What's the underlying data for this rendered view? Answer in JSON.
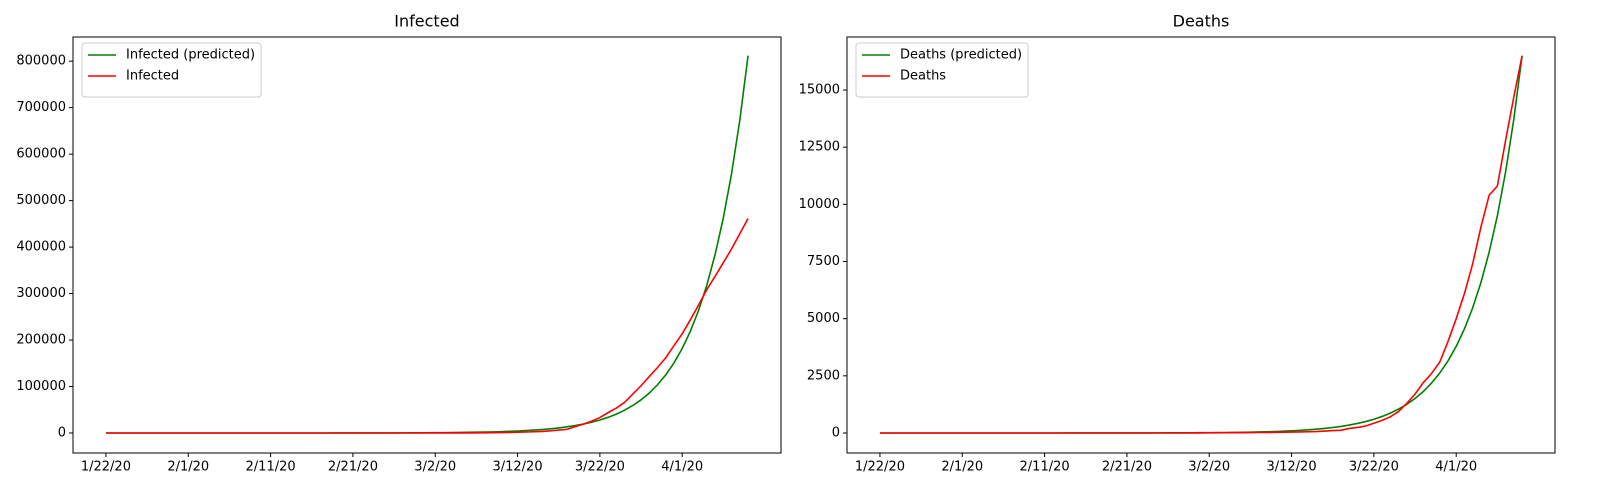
{
  "chart_data": [
    {
      "type": "line",
      "title": "Infected",
      "x": [
        "1/22/20",
        "1/23/20",
        "1/24/20",
        "1/25/20",
        "1/26/20",
        "1/27/20",
        "1/28/20",
        "1/29/20",
        "1/30/20",
        "1/31/20",
        "2/1/20",
        "2/2/20",
        "2/3/20",
        "2/4/20",
        "2/5/20",
        "2/6/20",
        "2/7/20",
        "2/8/20",
        "2/9/20",
        "2/10/20",
        "2/11/20",
        "2/12/20",
        "2/13/20",
        "2/14/20",
        "2/15/20",
        "2/16/20",
        "2/17/20",
        "2/18/20",
        "2/19/20",
        "2/20/20",
        "2/21/20",
        "2/22/20",
        "2/23/20",
        "2/24/20",
        "2/25/20",
        "2/26/20",
        "2/27/20",
        "2/28/20",
        "2/29/20",
        "3/1/20",
        "3/2/20",
        "3/3/20",
        "3/4/20",
        "3/5/20",
        "3/6/20",
        "3/7/20",
        "3/8/20",
        "3/9/20",
        "3/10/20",
        "3/11/20",
        "3/12/20",
        "3/13/20",
        "3/14/20",
        "3/15/20",
        "3/16/20",
        "3/17/20",
        "3/18/20",
        "3/19/20",
        "3/20/20",
        "3/21/20",
        "3/22/20",
        "3/23/20",
        "3/24/20",
        "3/25/20",
        "3/26/20",
        "3/27/20",
        "3/28/20",
        "3/29/20",
        "3/30/20",
        "3/31/20",
        "4/1/20",
        "4/2/20",
        "4/3/20",
        "4/4/20",
        "4/5/20",
        "4/6/20",
        "4/7/20",
        "4/8/20",
        "4/9/20"
      ],
      "series": [
        {
          "name": "Infected (predicted)",
          "color": "#008000",
          "values": [
            0,
            0,
            0,
            1,
            1,
            1,
            1,
            1,
            2,
            2,
            2,
            3,
            3,
            4,
            5,
            6,
            7,
            9,
            11,
            13,
            16,
            19,
            23,
            28,
            34,
            40,
            49,
            59,
            71,
            85,
            103,
            124,
            149,
            180,
            217,
            261,
            315,
            380,
            458,
            552,
            665,
            802,
            967,
            1166,
            1406,
            1695,
            2043,
            2463,
            2970,
            3581,
            4317,
            5205,
            6276,
            7567,
            9123,
            11000,
            13260,
            15990,
            19280,
            23240,
            28020,
            33780,
            40730,
            49110,
            59210,
            71390,
            86070,
            103800,
            125100,
            150800,
            181900,
            219300,
            264400,
            318700,
            384300,
            463300,
            558600,
            673500,
            812000
          ]
        },
        {
          "name": "Infected",
          "color": "#ff0000",
          "values": [
            1,
            1,
            2,
            2,
            5,
            5,
            5,
            5,
            5,
            7,
            8,
            8,
            11,
            11,
            11,
            11,
            11,
            11,
            11,
            11,
            12,
            12,
            13,
            13,
            13,
            13,
            13,
            13,
            13,
            13,
            15,
            15,
            15,
            51,
            51,
            57,
            58,
            60,
            68,
            74,
            98,
            118,
            149,
            217,
            262,
            402,
            518,
            583,
            959,
            1281,
            1663,
            2179,
            2727,
            3499,
            4632,
            6421,
            7786,
            13680,
            19101,
            25493,
            33276,
            43847,
            53740,
            65778,
            83836,
            101657,
            121465,
            140909,
            161831,
            188172,
            213372,
            243762,
            275586,
            308853,
            337072,
            366667,
            396223,
            429052,
            461437
          ]
        }
      ],
      "xlim": [
        "1/18/20",
        "4/13/20"
      ],
      "xticks": [
        "1/22/20",
        "2/1/20",
        "2/11/20",
        "2/21/20",
        "3/2/20",
        "3/12/20",
        "3/22/20",
        "4/1/20"
      ],
      "ylim": [
        -43000,
        852000
      ],
      "yticks": [
        0,
        100000,
        200000,
        300000,
        400000,
        500000,
        600000,
        700000,
        800000
      ],
      "legend": "upper left"
    },
    {
      "type": "line",
      "title": "Deaths",
      "x": [
        "1/22/20",
        "1/23/20",
        "1/24/20",
        "1/25/20",
        "1/26/20",
        "1/27/20",
        "1/28/20",
        "1/29/20",
        "1/30/20",
        "1/31/20",
        "2/1/20",
        "2/2/20",
        "2/3/20",
        "2/4/20",
        "2/5/20",
        "2/6/20",
        "2/7/20",
        "2/8/20",
        "2/9/20",
        "2/10/20",
        "2/11/20",
        "2/12/20",
        "2/13/20",
        "2/14/20",
        "2/15/20",
        "2/16/20",
        "2/17/20",
        "2/18/20",
        "2/19/20",
        "2/20/20",
        "2/21/20",
        "2/22/20",
        "2/23/20",
        "2/24/20",
        "2/25/20",
        "2/26/20",
        "2/27/20",
        "2/28/20",
        "2/29/20",
        "3/1/20",
        "3/2/20",
        "3/3/20",
        "3/4/20",
        "3/5/20",
        "3/6/20",
        "3/7/20",
        "3/8/20",
        "3/9/20",
        "3/10/20",
        "3/11/20",
        "3/12/20",
        "3/13/20",
        "3/14/20",
        "3/15/20",
        "3/16/20",
        "3/17/20",
        "3/18/20",
        "3/19/20",
        "3/20/20",
        "3/21/20",
        "3/22/20",
        "3/23/20",
        "3/24/20",
        "3/25/20",
        "3/26/20",
        "3/27/20",
        "3/28/20",
        "3/29/20",
        "3/30/20",
        "3/31/20",
        "4/1/20",
        "4/2/20",
        "4/3/20",
        "4/4/20",
        "4/5/20",
        "4/6/20",
        "4/7/20",
        "4/8/20",
        "4/9/20"
      ],
      "series": [
        {
          "name": "Deaths (predicted)",
          "color": "#008000",
          "values": [
            0,
            0,
            0,
            0,
            0,
            0,
            0,
            0,
            0,
            0,
            0,
            0,
            0,
            0,
            0,
            0,
            0,
            0,
            0,
            0,
            0,
            0,
            0,
            1,
            1,
            1,
            1,
            2,
            2,
            2,
            3,
            3,
            4,
            4,
            5,
            6,
            7,
            9,
            11,
            13,
            15,
            18,
            22,
            26,
            32,
            38,
            46,
            55,
            66,
            80,
            96,
            115,
            138,
            166,
            200,
            240,
            288,
            347,
            417,
            501,
            602,
            724,
            870,
            1045,
            1256,
            1510,
            1815,
            2182,
            2622,
            3152,
            3788,
            4553,
            5473,
            6578,
            7906,
            9503,
            11420,
            13730,
            16500
          ]
        },
        {
          "name": "Deaths",
          "color": "#ff0000",
          "values": [
            0,
            0,
            0,
            0,
            0,
            0,
            0,
            0,
            0,
            0,
            0,
            0,
            0,
            0,
            0,
            0,
            0,
            0,
            0,
            0,
            0,
            0,
            0,
            0,
            0,
            0,
            0,
            0,
            0,
            0,
            0,
            0,
            0,
            0,
            0,
            0,
            0,
            0,
            1,
            1,
            6,
            7,
            11,
            12,
            14,
            17,
            21,
            22,
            28,
            36,
            40,
            47,
            54,
            63,
            85,
            108,
            118,
            200,
            244,
            307,
            427,
            552,
            706,
            942,
            1300,
            1700,
            2200,
            2600,
            3100,
            4000,
            5000,
            6100,
            7400,
            9000,
            10400,
            10800,
            12800,
            14700,
            16500
          ]
        }
      ],
      "xlim": [
        "1/18/20",
        "4/13/20"
      ],
      "xticks": [
        "1/22/20",
        "2/1/20",
        "2/11/20",
        "2/21/20",
        "3/2/20",
        "3/12/20",
        "3/22/20",
        "4/1/20"
      ],
      "ylim": [
        -875,
        17320
      ],
      "yticks": [
        0,
        2500,
        5000,
        7500,
        10000,
        12500,
        15000
      ],
      "legend": "upper left"
    }
  ]
}
